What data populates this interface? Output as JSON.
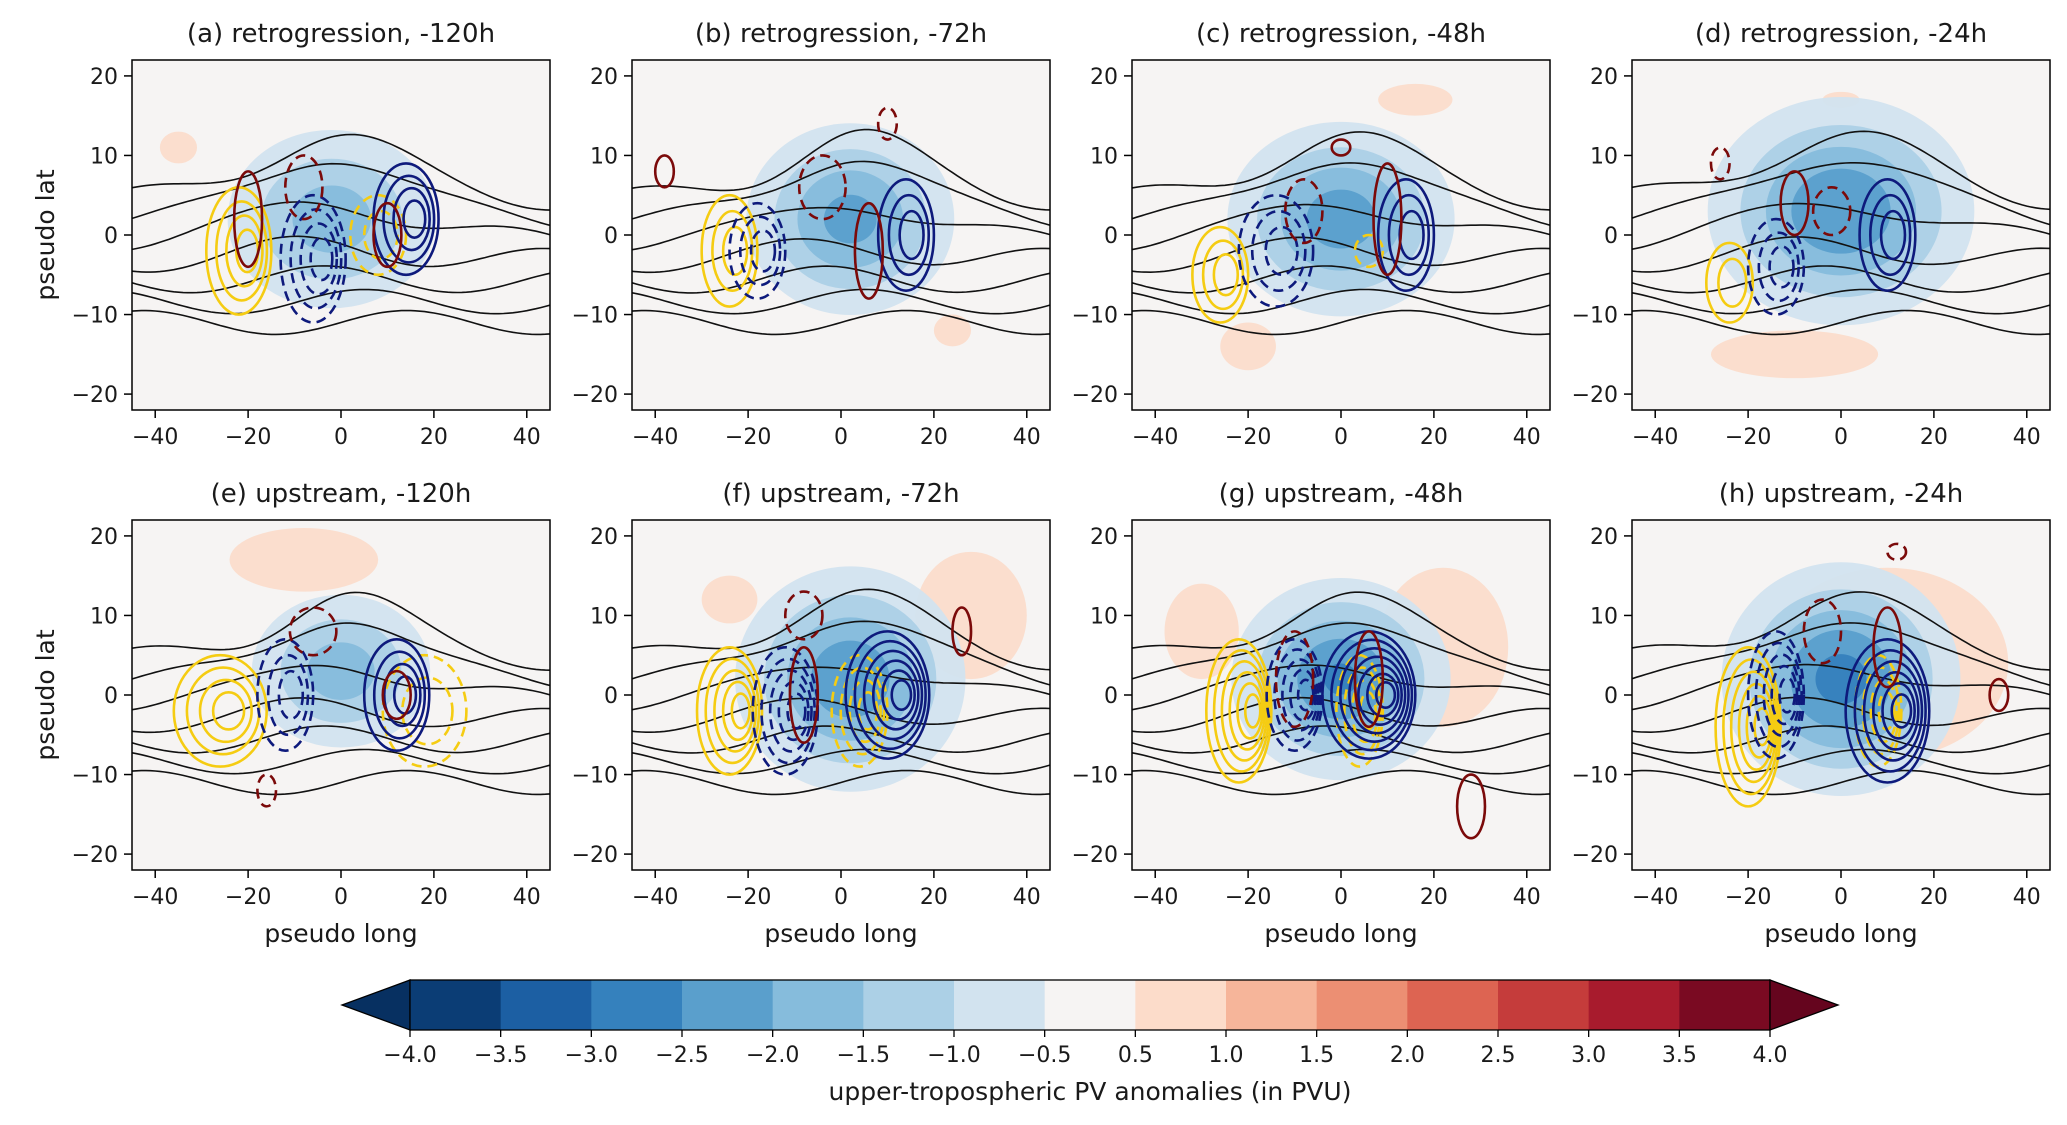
{
  "chart_data": {
    "type": "contour",
    "x_axis": {
      "label": "pseudo long",
      "ticks": [
        -40,
        -20,
        0,
        20,
        40
      ],
      "lim": [
        -45,
        45
      ]
    },
    "y_axis": {
      "label": "pseudo lat",
      "ticks": [
        -20,
        -10,
        0,
        10,
        20
      ],
      "lim": [
        -22,
        22
      ]
    },
    "panels": [
      {
        "title": "(a) retrogression, -120h",
        "row": 0,
        "col": 0,
        "trough": {
          "x": -2,
          "y": 2,
          "sx": 14,
          "sy": 7,
          "amp": 1.8
        },
        "blue": {
          "x": 14,
          "y": 2,
          "sx": 7,
          "sy": 7,
          "n": 4
        },
        "bluedash": {
          "x": -6,
          "y": -3,
          "sx": 7,
          "sy": 8,
          "n": 4
        },
        "yellow": {
          "x": -22,
          "y": -2,
          "sx": 7,
          "sy": 8,
          "n": 4
        },
        "yellowdash": {
          "x": 8,
          "y": 0,
          "sx": 6,
          "sy": 5,
          "n": 2
        },
        "red": [
          {
            "x": 10,
            "y": 0,
            "rx": 3,
            "ry": 4
          },
          {
            "x": -20,
            "y": 2,
            "rx": 3,
            "ry": 6
          }
        ],
        "reddash": [
          {
            "x": -8,
            "y": 6,
            "rx": 4,
            "ry": 4
          }
        ],
        "pos": [
          {
            "x": -35,
            "y": 11,
            "rx": 4,
            "ry": 2
          }
        ]
      },
      {
        "title": "(b) retrogression, -72h",
        "row": 0,
        "col": 1,
        "trough": {
          "x": 2,
          "y": 2,
          "sx": 13,
          "sy": 7,
          "amp": 2.2
        },
        "blue": {
          "x": 14,
          "y": 0,
          "sx": 6,
          "sy": 7,
          "n": 3
        },
        "bluedash": {
          "x": -18,
          "y": -2,
          "sx": 6,
          "sy": 6,
          "n": 3
        },
        "yellow": {
          "x": -24,
          "y": -2,
          "sx": 6,
          "sy": 7,
          "n": 3
        },
        "yellowdash": null,
        "red": [
          {
            "x": 6,
            "y": -2,
            "rx": 3,
            "ry": 6
          },
          {
            "x": -38,
            "y": 8,
            "rx": 2,
            "ry": 2
          }
        ],
        "reddash": [
          {
            "x": -4,
            "y": 6,
            "rx": 5,
            "ry": 4
          },
          {
            "x": 10,
            "y": 14,
            "rx": 2,
            "ry": 2
          }
        ],
        "pos": [
          {
            "x": 24,
            "y": -12,
            "rx": 4,
            "ry": 2
          }
        ]
      },
      {
        "title": "(c) retrogression, -48h",
        "row": 0,
        "col": 2,
        "trough": {
          "x": 0,
          "y": 2,
          "sx": 14,
          "sy": 7,
          "amp": 2.3
        },
        "blue": {
          "x": 14,
          "y": 0,
          "sx": 6,
          "sy": 7,
          "n": 3
        },
        "bluedash": {
          "x": -14,
          "y": -2,
          "sx": 8,
          "sy": 7,
          "n": 3
        },
        "yellow": {
          "x": -26,
          "y": -5,
          "sx": 6,
          "sy": 6,
          "n": 3
        },
        "yellowdash": {
          "x": 6,
          "y": -2,
          "sx": 3,
          "sy": 2,
          "n": 1
        },
        "red": [
          {
            "x": 10,
            "y": 2,
            "rx": 3,
            "ry": 7
          },
          {
            "x": 0,
            "y": 11,
            "rx": 2,
            "ry": 1
          }
        ],
        "reddash": [
          {
            "x": -8,
            "y": 3,
            "rx": 4,
            "ry": 4
          }
        ],
        "pos": [
          {
            "x": 16,
            "y": 17,
            "rx": 8,
            "ry": 2
          },
          {
            "x": -20,
            "y": -14,
            "rx": 6,
            "ry": 3
          }
        ]
      },
      {
        "title": "(d) retrogression, -24h",
        "row": 0,
        "col": 3,
        "trough": {
          "x": 0,
          "y": 3,
          "sx": 16,
          "sy": 8,
          "amp": 2.5
        },
        "blue": {
          "x": 10,
          "y": 0,
          "sx": 6,
          "sy": 7,
          "n": 3
        },
        "bluedash": {
          "x": -14,
          "y": -4,
          "sx": 6,
          "sy": 6,
          "n": 3
        },
        "yellow": {
          "x": -24,
          "y": -6,
          "sx": 5,
          "sy": 5,
          "n": 2
        },
        "yellowdash": null,
        "red": [
          {
            "x": -10,
            "y": 4,
            "rx": 3,
            "ry": 4
          }
        ],
        "reddash": [
          {
            "x": -2,
            "y": 3,
            "rx": 4,
            "ry": 3
          },
          {
            "x": -26,
            "y": 9,
            "rx": 2,
            "ry": 2
          }
        ],
        "pos": [
          {
            "x": 0,
            "y": 17,
            "rx": 4,
            "ry": 1
          },
          {
            "x": -10,
            "y": -15,
            "rx": 18,
            "ry": 3
          }
        ]
      },
      {
        "title": "(e) upstream, -120h",
        "row": 1,
        "col": 0,
        "trough": {
          "x": 0,
          "y": 3,
          "sx": 12,
          "sy": 6,
          "amp": 1.8
        },
        "blue": {
          "x": 12,
          "y": 0,
          "sx": 7,
          "sy": 7,
          "n": 4
        },
        "bluedash": {
          "x": -12,
          "y": 0,
          "sx": 6,
          "sy": 7,
          "n": 3
        },
        "yellow": {
          "x": -26,
          "y": -2,
          "sx": 10,
          "sy": 7,
          "n": 4
        },
        "yellowdash": {
          "x": 18,
          "y": -2,
          "sx": 9,
          "sy": 7,
          "n": 2
        },
        "red": [
          {
            "x": 12,
            "y": 0,
            "rx": 3,
            "ry": 3
          }
        ],
        "reddash": [
          {
            "x": -6,
            "y": 8,
            "rx": 5,
            "ry": 3
          },
          {
            "x": -16,
            "y": -12,
            "rx": 2,
            "ry": 2
          }
        ],
        "pos": [
          {
            "x": -8,
            "y": 17,
            "rx": 16,
            "ry": 4
          }
        ]
      },
      {
        "title": "(f) upstream, -72h",
        "row": 1,
        "col": 1,
        "trough": {
          "x": 2,
          "y": 2,
          "sx": 14,
          "sy": 8,
          "amp": 2.4
        },
        "blue": {
          "x": 10,
          "y": 0,
          "sx": 9,
          "sy": 8,
          "n": 6
        },
        "bluedash": {
          "x": -12,
          "y": -2,
          "sx": 7,
          "sy": 8,
          "n": 5
        },
        "yellow": {
          "x": -24,
          "y": -2,
          "sx": 7,
          "sy": 8,
          "n": 5
        },
        "yellowdash": {
          "x": 4,
          "y": -2,
          "sx": 6,
          "sy": 7,
          "n": 4
        },
        "red": [
          {
            "x": 26,
            "y": 8,
            "rx": 2,
            "ry": 3
          },
          {
            "x": -8,
            "y": 0,
            "rx": 3,
            "ry": 6
          }
        ],
        "reddash": [
          {
            "x": -8,
            "y": 10,
            "rx": 4,
            "ry": 3
          }
        ],
        "pos": [
          {
            "x": 28,
            "y": 10,
            "rx": 12,
            "ry": 8
          },
          {
            "x": -24,
            "y": 12,
            "rx": 6,
            "ry": 3
          }
        ]
      },
      {
        "title": "(g) upstream, -48h",
        "row": 1,
        "col": 2,
        "trough": {
          "x": 0,
          "y": 2,
          "sx": 13,
          "sy": 7,
          "amp": 2.6
        },
        "blue": {
          "x": 6,
          "y": 0,
          "sx": 10,
          "sy": 8,
          "n": 7
        },
        "bluedash": {
          "x": -10,
          "y": 0,
          "sx": 6,
          "sy": 7,
          "n": 5
        },
        "yellow": {
          "x": -22,
          "y": -2,
          "sx": 7,
          "sy": 9,
          "n": 6
        },
        "yellowdash": {
          "x": 4,
          "y": -2,
          "sx": 5,
          "sy": 7,
          "n": 4
        },
        "red": [
          {
            "x": 28,
            "y": -14,
            "rx": 3,
            "ry": 4
          },
          {
            "x": 6,
            "y": 2,
            "rx": 3,
            "ry": 6
          }
        ],
        "reddash": [
          {
            "x": -10,
            "y": 2,
            "rx": 4,
            "ry": 6
          }
        ],
        "pos": [
          {
            "x": 22,
            "y": 6,
            "rx": 14,
            "ry": 10
          },
          {
            "x": -30,
            "y": 8,
            "rx": 8,
            "ry": 6
          }
        ]
      },
      {
        "title": "(h) upstream, -24h",
        "row": 1,
        "col": 3,
        "trough": {
          "x": 0,
          "y": 2,
          "sx": 14,
          "sy": 8,
          "amp": 2.7
        },
        "blue": {
          "x": 10,
          "y": -2,
          "sx": 9,
          "sy": 9,
          "n": 6
        },
        "bluedash": {
          "x": -14,
          "y": 0,
          "sx": 6,
          "sy": 8,
          "n": 5
        },
        "yellow": {
          "x": -20,
          "y": -4,
          "sx": 7,
          "sy": 10,
          "n": 6
        },
        "yellowdash": {
          "x": 8,
          "y": -2,
          "sx": 5,
          "sy": 7,
          "n": 4
        },
        "red": [
          {
            "x": 10,
            "y": 6,
            "rx": 3,
            "ry": 5
          },
          {
            "x": 34,
            "y": 0,
            "rx": 2,
            "ry": 2
          }
        ],
        "reddash": [
          {
            "x": -4,
            "y": 8,
            "rx": 4,
            "ry": 4
          },
          {
            "x": 12,
            "y": 18,
            "rx": 2,
            "ry": 1
          }
        ],
        "pos": [
          {
            "x": 10,
            "y": 4,
            "rx": 26,
            "ry": 12
          }
        ]
      }
    ],
    "colorbar": {
      "label": "upper-tropospheric PV anomalies (in PVU)",
      "tick_labels": [
        "−4.0",
        "−3.5",
        "−3.0",
        "−2.5",
        "−2.0",
        "−1.5",
        "−1.0",
        "−0.5",
        "0.5",
        "1.0",
        "1.5",
        "2.0",
        "2.5",
        "3.0",
        "3.5",
        "4.0"
      ],
      "colors": [
        "#0b3d75",
        "#1c5fa3",
        "#3581bd",
        "#5a9fcc",
        "#86bcdc",
        "#acd0e6",
        "#d2e3ef",
        "#f6f4f3",
        "#fcdcca",
        "#f6b59a",
        "#ec8f73",
        "#dd6452",
        "#c53c3b",
        "#a81b2d",
        "#7a0a22"
      ],
      "under_color": "#073061",
      "over_color": "#65051e",
      "extend": "both"
    },
    "line_colors": {
      "blue": "#0e1a7c",
      "yellow": "#f5cc12",
      "red": "#7b0a0a",
      "black": "#111111"
    }
  }
}
